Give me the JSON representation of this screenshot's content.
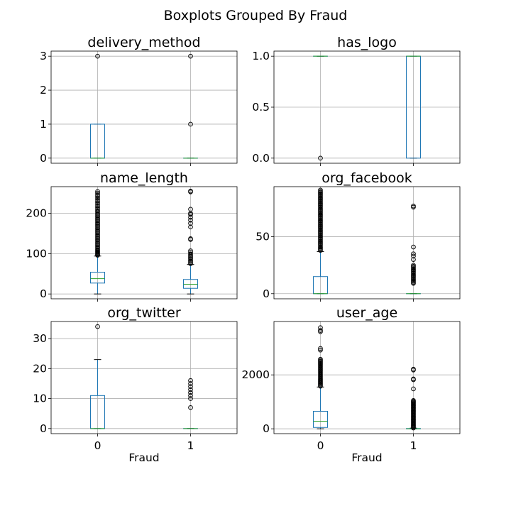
{
  "figure": {
    "suptitle": "Boxplots Grouped By Fraud"
  },
  "chart_data": [
    {
      "type": "box",
      "title": "delivery_method",
      "xlabel": "",
      "categories": [
        "0",
        "1"
      ],
      "ylim": [
        -0.15,
        3.15
      ],
      "yticks": [
        0,
        1,
        2,
        3
      ],
      "ytick_labels": [
        "0",
        "1",
        "2",
        "3"
      ],
      "grid": true,
      "boxes": [
        {
          "q1": 0,
          "median": 0,
          "q3": 1,
          "whislo": 0,
          "whishi": 1,
          "fliers": [
            3
          ]
        },
        {
          "q1": 0,
          "median": 0,
          "q3": 0,
          "whislo": 0,
          "whishi": 0,
          "fliers": [
            1,
            3
          ]
        }
      ]
    },
    {
      "type": "box",
      "title": "has_logo",
      "xlabel": "",
      "categories": [
        "0",
        "1"
      ],
      "ylim": [
        -0.05,
        1.05
      ],
      "yticks": [
        0,
        0.5,
        1
      ],
      "ytick_labels": [
        "0.0",
        "0.5",
        "1.0"
      ],
      "grid": true,
      "boxes": [
        {
          "q1": 1,
          "median": 1,
          "q3": 1,
          "whislo": 1,
          "whishi": 1,
          "fliers": [
            0
          ]
        },
        {
          "q1": 0,
          "median": 1,
          "q3": 1,
          "whislo": 0,
          "whishi": 1,
          "fliers": []
        }
      ]
    },
    {
      "type": "box",
      "title": "name_length",
      "xlabel": "",
      "categories": [
        "0",
        "1"
      ],
      "ylim": [
        -12,
        266
      ],
      "yticks": [
        0,
        100,
        200
      ],
      "ytick_labels": [
        "0",
        "100",
        "200"
      ],
      "grid": true,
      "boxes": [
        {
          "q1": 27,
          "median": 38,
          "q3": 54,
          "whislo": 0,
          "whishi": 94,
          "fliers": [
            96,
            98,
            100,
            102,
            104,
            106,
            108,
            110,
            113,
            116,
            119,
            122,
            125,
            128,
            131,
            134,
            137,
            140,
            143,
            146,
            149,
            152,
            155,
            158,
            161,
            164,
            167,
            170,
            173,
            176,
            179,
            182,
            185,
            188,
            191,
            194,
            197,
            200,
            203,
            206,
            210,
            214,
            218,
            222,
            226,
            230,
            234,
            238,
            242,
            246,
            250,
            254
          ]
        },
        {
          "q1": 14,
          "median": 24,
          "q3": 36,
          "whislo": 0,
          "whishi": 73,
          "fliers": [
            75,
            78,
            81,
            84,
            87,
            90,
            93,
            96,
            99,
            103,
            107,
            135,
            137,
            166,
            175,
            183,
            190,
            197,
            200,
            210,
            253,
            255
          ]
        }
      ]
    },
    {
      "type": "box",
      "title": "org_facebook",
      "xlabel": "",
      "categories": [
        "0",
        "1"
      ],
      "ylim": [
        -4.5,
        94
      ],
      "yticks": [
        0,
        50
      ],
      "ytick_labels": [
        "0",
        "50"
      ],
      "grid": true,
      "boxes": [
        {
          "q1": 0,
          "median": 0,
          "q3": 15,
          "whislo": 0,
          "whishi": 37,
          "fliers": [
            38,
            39,
            40,
            41,
            42,
            43,
            44,
            45,
            46,
            47,
            48,
            49,
            50,
            51,
            52,
            53,
            54,
            55,
            56,
            57,
            58,
            59,
            60,
            61,
            62,
            63,
            64,
            65,
            66,
            67,
            68,
            69,
            70,
            71,
            72,
            73,
            74,
            75,
            76,
            77,
            78,
            79,
            80,
            81,
            82,
            83,
            84,
            85,
            86,
            87,
            88,
            89,
            90,
            91
          ]
        },
        {
          "q1": 0,
          "median": 0,
          "q3": 0,
          "whislo": 0,
          "whishi": 0,
          "fliers": [
            9,
            10,
            11,
            12,
            13,
            14,
            15,
            16,
            17,
            18,
            19,
            20,
            21,
            22,
            23,
            24,
            25,
            30,
            33,
            35,
            41,
            76,
            77
          ]
        }
      ]
    },
    {
      "type": "box",
      "title": "org_twitter",
      "xlabel": "Fraud",
      "categories": [
        "0",
        "1"
      ],
      "ylim": [
        -1.7,
        35.7
      ],
      "yticks": [
        0,
        10,
        20,
        30
      ],
      "ytick_labels": [
        "0",
        "10",
        "20",
        "30"
      ],
      "grid": true,
      "boxes": [
        {
          "q1": 0,
          "median": 0,
          "q3": 11,
          "whislo": 0,
          "whishi": 23,
          "fliers": [
            34
          ]
        },
        {
          "q1": 0,
          "median": 0,
          "q3": 0,
          "whislo": 0,
          "whishi": 0,
          "fliers": [
            7,
            10,
            11,
            12,
            13,
            14,
            15,
            16
          ]
        }
      ]
    },
    {
      "type": "box",
      "title": "user_age",
      "xlabel": "Fraud",
      "categories": [
        "0",
        "1"
      ],
      "ylim": [
        -180,
        3980
      ],
      "yticks": [
        0,
        2000
      ],
      "ytick_labels": [
        "0",
        "2000"
      ],
      "grid": true,
      "boxes": [
        {
          "q1": 50,
          "median": 280,
          "q3": 650,
          "whislo": 0,
          "whishi": 1550,
          "fliers": [
            1580,
            1620,
            1660,
            1700,
            1740,
            1780,
            1820,
            1860,
            1900,
            1940,
            1980,
            2020,
            2060,
            2100,
            2140,
            2180,
            2220,
            2260,
            2300,
            2340,
            2380,
            2420,
            2460,
            2500,
            2540,
            2580,
            2920,
            2980,
            3600,
            3650,
            3750
          ]
        },
        {
          "q1": 0,
          "median": 0,
          "q3": 10,
          "whislo": 0,
          "whishi": 25,
          "fliers": [
            30,
            60,
            90,
            120,
            150,
            180,
            210,
            240,
            270,
            300,
            330,
            360,
            390,
            420,
            450,
            480,
            510,
            540,
            570,
            600,
            630,
            660,
            690,
            720,
            750,
            780,
            810,
            840,
            870,
            900,
            930,
            960,
            990,
            1020,
            1050,
            1480,
            1820,
            1850,
            2180,
            2210
          ]
        }
      ]
    }
  ]
}
